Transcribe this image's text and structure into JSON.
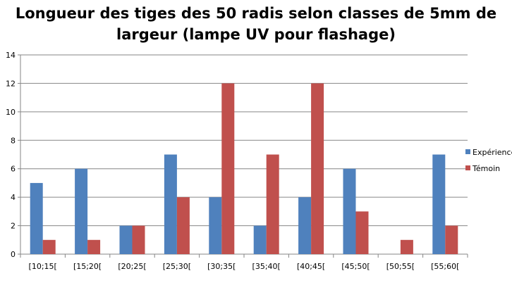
{
  "chart_data": {
    "type": "bar",
    "title_lines": [
      "Longueur des tiges des 50 radis selon classes de 5mm de",
      "largeur (lampe UV pour flashage)"
    ],
    "categories": [
      "[10;15[",
      "[15;20[",
      "[20;25[",
      "[25;30[",
      "[30;35[",
      "[35;40[",
      "[40;45[",
      "[45;50[",
      "[50;55[",
      "[55;60["
    ],
    "series": [
      {
        "name": "Expérience",
        "color": "#4F81BD",
        "values": [
          5,
          6,
          2,
          7,
          4,
          2,
          4,
          6,
          0,
          7
        ]
      },
      {
        "name": "Témoin",
        "color": "#C0504D",
        "values": [
          1,
          1,
          2,
          4,
          12,
          7,
          12,
          3,
          1,
          2
        ]
      }
    ],
    "ylim": [
      0,
      14
    ],
    "yticks": [
      0,
      2,
      4,
      6,
      8,
      10,
      12,
      14
    ],
    "grid": true,
    "legend_position": "right"
  }
}
